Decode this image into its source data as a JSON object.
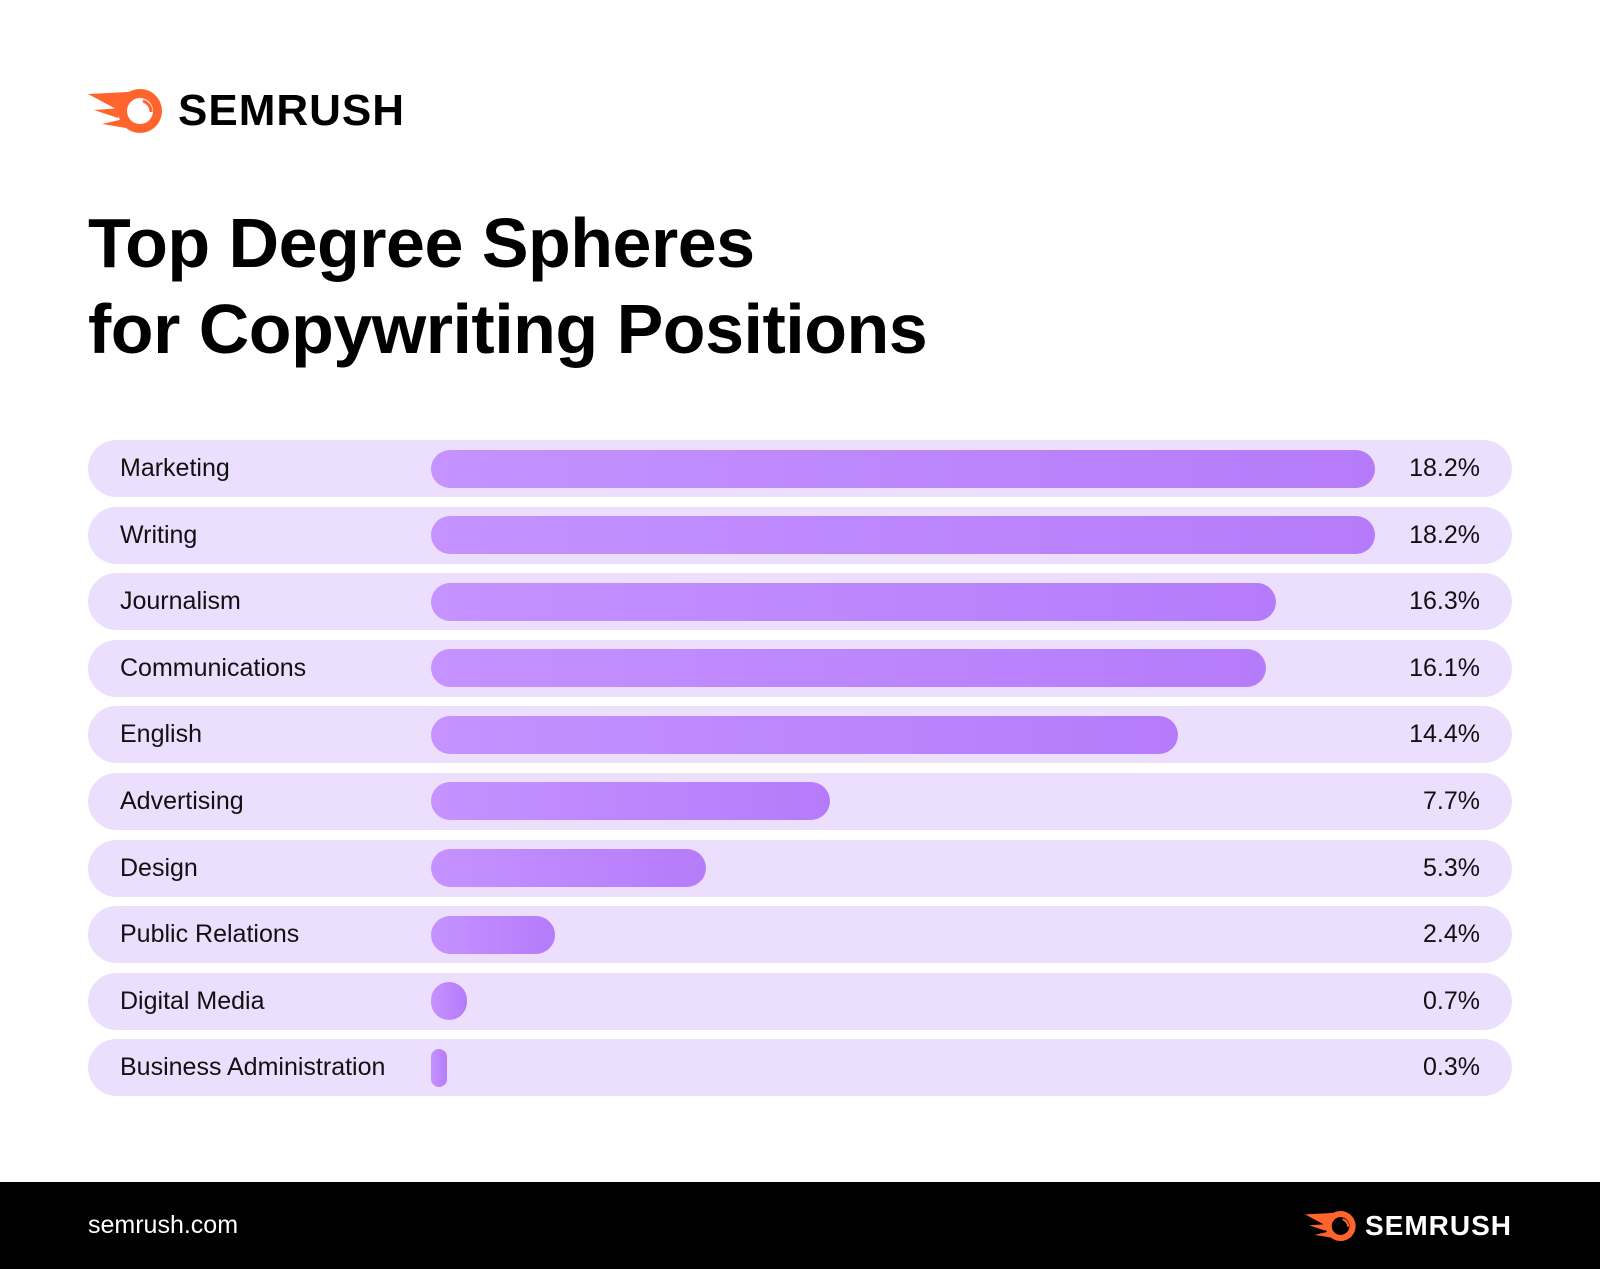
{
  "brand": {
    "name": "SEMRUSH",
    "color": "#ff642d"
  },
  "title_lines": [
    "Top Degree Spheres",
    "for Copywriting Positions"
  ],
  "chart_data": {
    "type": "bar",
    "orientation": "horizontal",
    "title": "Top Degree Spheres for Copywriting Positions",
    "categories": [
      "Marketing",
      "Writing",
      "Journalism",
      "Communications",
      "English",
      "Advertising",
      "Design",
      "Public Relations",
      "Digital Media",
      "Business Administration"
    ],
    "values": [
      18.2,
      18.2,
      16.3,
      16.1,
      14.4,
      7.7,
      5.3,
      2.4,
      0.7,
      0.3
    ],
    "value_labels": [
      "18.2%",
      "18.2%",
      "16.3%",
      "16.1%",
      "14.4%",
      "7.7%",
      "5.3%",
      "2.4%",
      "0.7%",
      "0.3%"
    ],
    "unit": "%",
    "grid": false,
    "bar_color": "#b98bfd",
    "track_color": "#ecdffe"
  },
  "footer": {
    "url": "semrush.com",
    "brand": "SEMRUSH"
  }
}
